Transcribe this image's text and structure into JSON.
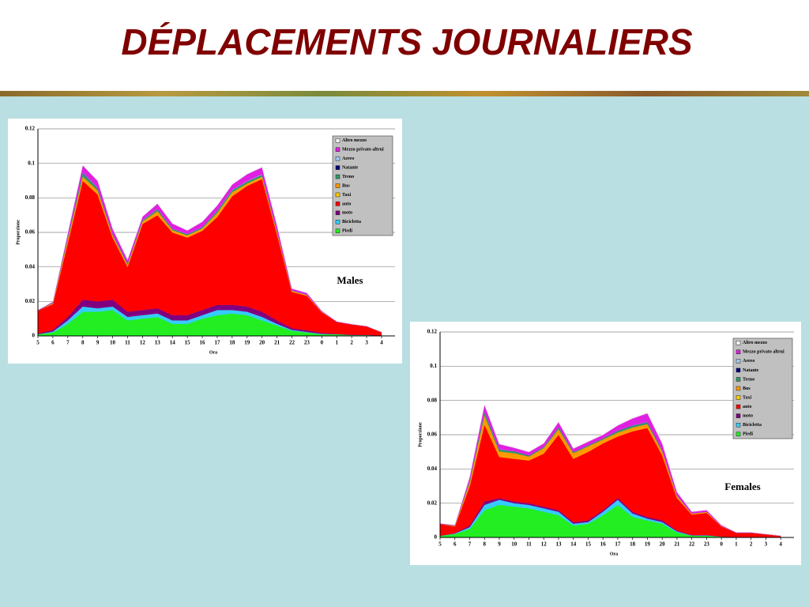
{
  "title": "DÉPLACEMENTS JOURNALIERS",
  "chart_data": [
    {
      "type": "area",
      "stacked": true,
      "annotation": "Males",
      "ylabel": "Proporzione",
      "xlabel": "Ora",
      "grid": true,
      "x": [
        5,
        6,
        7,
        8,
        9,
        10,
        11,
        12,
        13,
        14,
        15,
        16,
        17,
        18,
        19,
        20,
        21,
        22,
        23,
        24,
        25,
        26,
        27,
        28
      ],
      "xlim": [
        5,
        28.9
      ],
      "xticks": [
        5,
        6,
        7,
        8,
        9,
        10,
        11,
        12,
        13,
        14,
        15,
        16,
        17,
        18,
        19,
        20,
        21,
        22,
        23,
        {
          "value": 24,
          "label": "0"
        },
        {
          "value": 25,
          "label": "1"
        },
        {
          "value": 26,
          "label": "2"
        },
        {
          "value": 27,
          "label": "3"
        },
        {
          "value": 28,
          "label": "4"
        }
      ],
      "ylim": [
        0,
        0.12
      ],
      "yticks": [
        0,
        0.02,
        0.04,
        0.06,
        0.08,
        0.1,
        0.12
      ],
      "series": [
        {
          "name": "Altro mezzo",
          "color": "#f4f4f4",
          "values": [
            0,
            0.0002,
            0.0005,
            0.0005,
            0.0005,
            0.0005,
            0.0005,
            0.0005,
            0.0005,
            0.0005,
            0.0005,
            0.0005,
            0.0005,
            0.0005,
            0.0005,
            0.0005,
            0.0005,
            0.0002,
            0.0002,
            0.0001,
            0,
            0,
            0,
            0
          ]
        },
        {
          "name": "Mezzo privato altrui",
          "color": "#e020e0",
          "values": [
            0.0002,
            0.0005,
            0.002,
            0.004,
            0.004,
            0.003,
            0.002,
            0.002,
            0.003,
            0.003,
            0.002,
            0.003,
            0.003,
            0.003,
            0.004,
            0.004,
            0.003,
            0.001,
            0.001,
            0.0005,
            0.0002,
            0.0002,
            0.0001,
            0
          ]
        },
        {
          "name": "Aereo",
          "color": "#a0c8f0",
          "values": [
            0,
            0,
            0.0002,
            0.0003,
            0.0003,
            0.0002,
            0.0002,
            0.0002,
            0.0002,
            0.0002,
            0.0002,
            0.0002,
            0.0002,
            0.0003,
            0.0003,
            0.0003,
            0.0002,
            0.0001,
            0,
            0,
            0,
            0,
            0,
            0
          ]
        },
        {
          "name": "Natante",
          "color": "#000080",
          "values": [
            0,
            0,
            0.0001,
            0.0002,
            0.0002,
            0.0001,
            0.0001,
            0.0001,
            0.0001,
            0.0001,
            0.0001,
            0.0001,
            0.0001,
            0.0001,
            0.0001,
            0.0001,
            0.0001,
            0,
            0,
            0,
            0,
            0,
            0,
            0
          ]
        },
        {
          "name": "Treno",
          "color": "#339966",
          "values": [
            0,
            0.0003,
            0.001,
            0.002,
            0.001,
            0.0005,
            0.0005,
            0.0005,
            0.001,
            0.0005,
            0.0005,
            0.0005,
            0.001,
            0.001,
            0.001,
            0.001,
            0.0005,
            0.0002,
            0.0002,
            0.0001,
            0,
            0,
            0,
            0
          ]
        },
        {
          "name": "Bus",
          "color": "#ff9900",
          "values": [
            0,
            0.0005,
            0.002,
            0.002,
            0.002,
            0.001,
            0.001,
            0.001,
            0.002,
            0.001,
            0.001,
            0.001,
            0.002,
            0.002,
            0.001,
            0.001,
            0.001,
            0.0005,
            0.0003,
            0.0002,
            0,
            0,
            0,
            0
          ]
        },
        {
          "name": "Taxi",
          "color": "#ffcc00",
          "values": [
            0,
            0,
            0.0002,
            0.0003,
            0.0003,
            0.0003,
            0.0003,
            0.0003,
            0.0003,
            0.0003,
            0.0003,
            0.0003,
            0.0003,
            0.0003,
            0.0003,
            0.0003,
            0.0002,
            0.0001,
            0.0001,
            0,
            0,
            0,
            0,
            0
          ]
        },
        {
          "name": "auto",
          "color": "#ff0000",
          "values": [
            0.0133,
            0.015,
            0.043,
            0.069,
            0.062,
            0.036,
            0.026,
            0.05,
            0.054,
            0.048,
            0.045,
            0.046,
            0.051,
            0.063,
            0.07,
            0.077,
            0.05,
            0.021,
            0.02,
            0.012,
            0.007,
            0.006,
            0.005,
            0.002
          ]
        },
        {
          "name": "moto",
          "color": "#800080",
          "values": [
            0.0005,
            0.001,
            0.002,
            0.004,
            0.004,
            0.004,
            0.003,
            0.003,
            0.003,
            0.003,
            0.003,
            0.003,
            0.003,
            0.003,
            0.003,
            0.003,
            0.002,
            0.001,
            0.001,
            0.0005,
            0.0002,
            0.0002,
            0.0001,
            0
          ]
        },
        {
          "name": "Bicicletta",
          "color": "#33ccff",
          "values": [
            0,
            0.0005,
            0.002,
            0.003,
            0.002,
            0.002,
            0.002,
            0.002,
            0.002,
            0.002,
            0.002,
            0.002,
            0.003,
            0.002,
            0.002,
            0.002,
            0.001,
            0.0005,
            0.0003,
            0.0002,
            0,
            0,
            0,
            0
          ]
        },
        {
          "name": "Piedi",
          "color": "#22ee22",
          "values": [
            0.001,
            0.002,
            0.007,
            0.014,
            0.014,
            0.015,
            0.009,
            0.01,
            0.011,
            0.007,
            0.007,
            0.01,
            0.012,
            0.013,
            0.012,
            0.009,
            0.006,
            0.003,
            0.002,
            0.001,
            0.001,
            0.0005,
            0.0005,
            0.0002
          ]
        }
      ]
    },
    {
      "type": "area",
      "stacked": true,
      "annotation": "Females",
      "ylabel": "Proporzione",
      "xlabel": "Ora",
      "grid": true,
      "x": [
        5,
        6,
        7,
        8,
        9,
        10,
        11,
        12,
        13,
        14,
        15,
        16,
        17,
        18,
        19,
        20,
        21,
        22,
        23,
        24,
        25,
        26,
        27,
        28
      ],
      "xlim": [
        5,
        28.9
      ],
      "xticks": [
        5,
        6,
        7,
        8,
        9,
        10,
        11,
        12,
        13,
        14,
        15,
        16,
        17,
        18,
        19,
        20,
        21,
        22,
        23,
        {
          "value": 24,
          "label": "0"
        },
        {
          "value": 25,
          "label": "1"
        },
        {
          "value": 26,
          "label": "2"
        },
        {
          "value": 27,
          "label": "3"
        },
        {
          "value": 28,
          "label": "4"
        }
      ],
      "ylim": [
        0,
        0.12
      ],
      "yticks": [
        0,
        0.02,
        0.04,
        0.06,
        0.08,
        0.1,
        0.12
      ],
      "series": [
        {
          "name": "Altro mezzo",
          "color": "#f4f4f4",
          "values": [
            0,
            0,
            0.0002,
            0.0005,
            0.0005,
            0.0005,
            0.0005,
            0.0005,
            0.0005,
            0.0005,
            0.0005,
            0.0005,
            0.0005,
            0.0005,
            0.0005,
            0.0005,
            0.0002,
            0.0001,
            0.0001,
            0,
            0,
            0,
            0,
            0
          ]
        },
        {
          "name": "Mezzo privato altrui",
          "color": "#e020e0",
          "values": [
            0.0002,
            0.0003,
            0.002,
            0.004,
            0.003,
            0.002,
            0.002,
            0.002,
            0.003,
            0.002,
            0.002,
            0.002,
            0.003,
            0.004,
            0.005,
            0.004,
            0.002,
            0.001,
            0.001,
            0.0005,
            0.0002,
            0.0002,
            0.0001,
            0
          ]
        },
        {
          "name": "Aereo",
          "color": "#a0c8f0",
          "values": [
            0,
            0,
            0.0001,
            0.0002,
            0.0002,
            0.0001,
            0.0001,
            0.0001,
            0.0001,
            0.0001,
            0.0001,
            0.0001,
            0.0001,
            0.0002,
            0.0002,
            0.0001,
            0.0001,
            0,
            0,
            0,
            0,
            0,
            0,
            0
          ]
        },
        {
          "name": "Natante",
          "color": "#000080",
          "values": [
            0,
            0,
            0.0001,
            0.0001,
            0.0001,
            0.0001,
            0.0001,
            0.0001,
            0.0001,
            0.0001,
            0.0001,
            0.0001,
            0.0001,
            0.0001,
            0.0001,
            0.0001,
            0,
            0,
            0,
            0,
            0,
            0,
            0,
            0
          ]
        },
        {
          "name": "Treno",
          "color": "#339966",
          "values": [
            0,
            0.0002,
            0.001,
            0.002,
            0.001,
            0.001,
            0.0005,
            0.0005,
            0.001,
            0.0005,
            0.0005,
            0.0005,
            0.001,
            0.001,
            0.001,
            0.0005,
            0.0003,
            0.0001,
            0.0001,
            0,
            0,
            0,
            0,
            0
          ]
        },
        {
          "name": "Bus",
          "color": "#ff9900",
          "values": [
            0,
            0.0003,
            0.002,
            0.005,
            0.003,
            0.003,
            0.002,
            0.003,
            0.003,
            0.003,
            0.003,
            0.002,
            0.002,
            0.002,
            0.002,
            0.002,
            0.001,
            0.0005,
            0.0005,
            0.0002,
            0,
            0,
            0,
            0
          ]
        },
        {
          "name": "Taxi",
          "color": "#ffcc00",
          "values": [
            0,
            0,
            0.0001,
            0.0002,
            0.0002,
            0.0002,
            0.0002,
            0.0002,
            0.0002,
            0.0002,
            0.0002,
            0.0002,
            0.0002,
            0.0002,
            0.0002,
            0.0002,
            0.0001,
            0,
            0,
            0,
            0,
            0,
            0,
            0
          ]
        },
        {
          "name": "auto",
          "color": "#ff0000",
          "values": [
            0.007,
            0.004,
            0.023,
            0.045,
            0.024,
            0.025,
            0.025,
            0.031,
            0.044,
            0.037,
            0.04,
            0.039,
            0.036,
            0.047,
            0.052,
            0.038,
            0.019,
            0.012,
            0.013,
            0.006,
            0.0025,
            0.0026,
            0.0017,
            0.0009
          ]
        },
        {
          "name": "moto",
          "color": "#800080",
          "values": [
            0,
            0.0002,
            0.001,
            0.002,
            0.001,
            0.001,
            0.001,
            0.001,
            0.001,
            0.001,
            0.001,
            0.001,
            0.001,
            0.001,
            0.001,
            0.001,
            0.0005,
            0.0002,
            0.0002,
            0,
            0,
            0,
            0,
            0
          ]
        },
        {
          "name": "Bicicletta",
          "color": "#33ccff",
          "values": [
            0,
            0.0003,
            0.001,
            0.003,
            0.003,
            0.002,
            0.002,
            0.002,
            0.002,
            0.001,
            0.001,
            0.002,
            0.003,
            0.002,
            0.001,
            0.001,
            0.0005,
            0.0002,
            0.0002,
            0,
            0,
            0,
            0,
            0
          ]
        },
        {
          "name": "Piedi",
          "color": "#22ee22",
          "values": [
            0.001,
            0.002,
            0.005,
            0.016,
            0.019,
            0.018,
            0.017,
            0.015,
            0.013,
            0.007,
            0.008,
            0.013,
            0.019,
            0.012,
            0.01,
            0.008,
            0.003,
            0.001,
            0.001,
            0.0005,
            0.0003,
            0.0002,
            0.0002,
            0.0001
          ]
        }
      ]
    }
  ]
}
